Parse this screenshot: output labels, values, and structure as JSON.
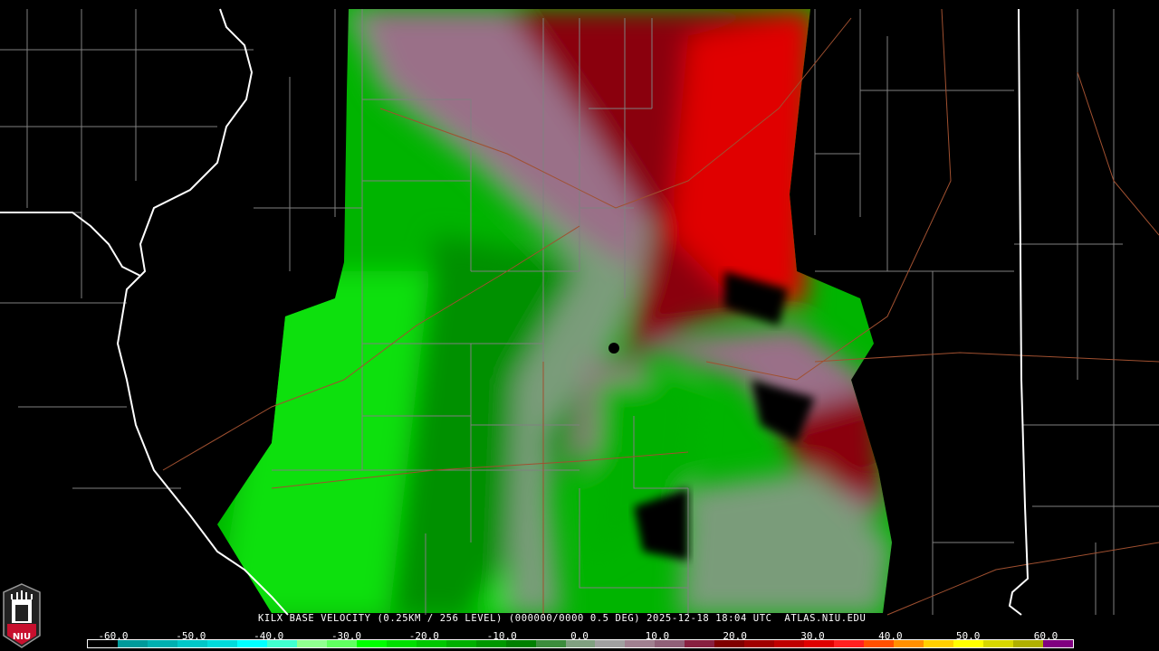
{
  "product": {
    "caption": "KILX BASE VELOCITY (0.25KM / 256 LEVEL) (000000/0000 0.5 DEG) 2025-12-18 18:04 UTC  ATLAS.NIU.EDU",
    "radar_site": "KILX",
    "date": "2025-12-18",
    "time": "18:04 UTC",
    "elevation": "0.5 DEG",
    "source": "ATLAS.NIU.EDU"
  },
  "logo": {
    "text": "NIU",
    "color": "#c8102e"
  },
  "colorbar": {
    "ticks": [
      "-60.0",
      "-50.0",
      "-40.0",
      "-30.0",
      "-20.0",
      "-10.0",
      "0.0",
      "10.0",
      "20.0",
      "30.0",
      "40.0",
      "50.0",
      "60.0"
    ],
    "colors": [
      "#000000",
      "#009a9a",
      "#00b0b0",
      "#00c8c8",
      "#00dcdc",
      "#00ffff",
      "#40ffd0",
      "#90ff90",
      "#60ff60",
      "#00ff00",
      "#00e000",
      "#00c800",
      "#00b000",
      "#009800",
      "#008000",
      "#3c8c3c",
      "#80a080",
      "#a0a0a0",
      "#a08090",
      "#906078",
      "#882040",
      "#800000",
      "#a00000",
      "#c00000",
      "#e00000",
      "#ff2020",
      "#ff5000",
      "#ff9000",
      "#ffd000",
      "#ffff00",
      "#d8d800",
      "#b0b000",
      "#800080"
    ]
  },
  "colors": {
    "background": "#000000",
    "county_lines": "#808080",
    "state_lines": "#ffffff",
    "highways": "#a05030",
    "inbound": "#00c800",
    "outbound": "#d00000"
  }
}
